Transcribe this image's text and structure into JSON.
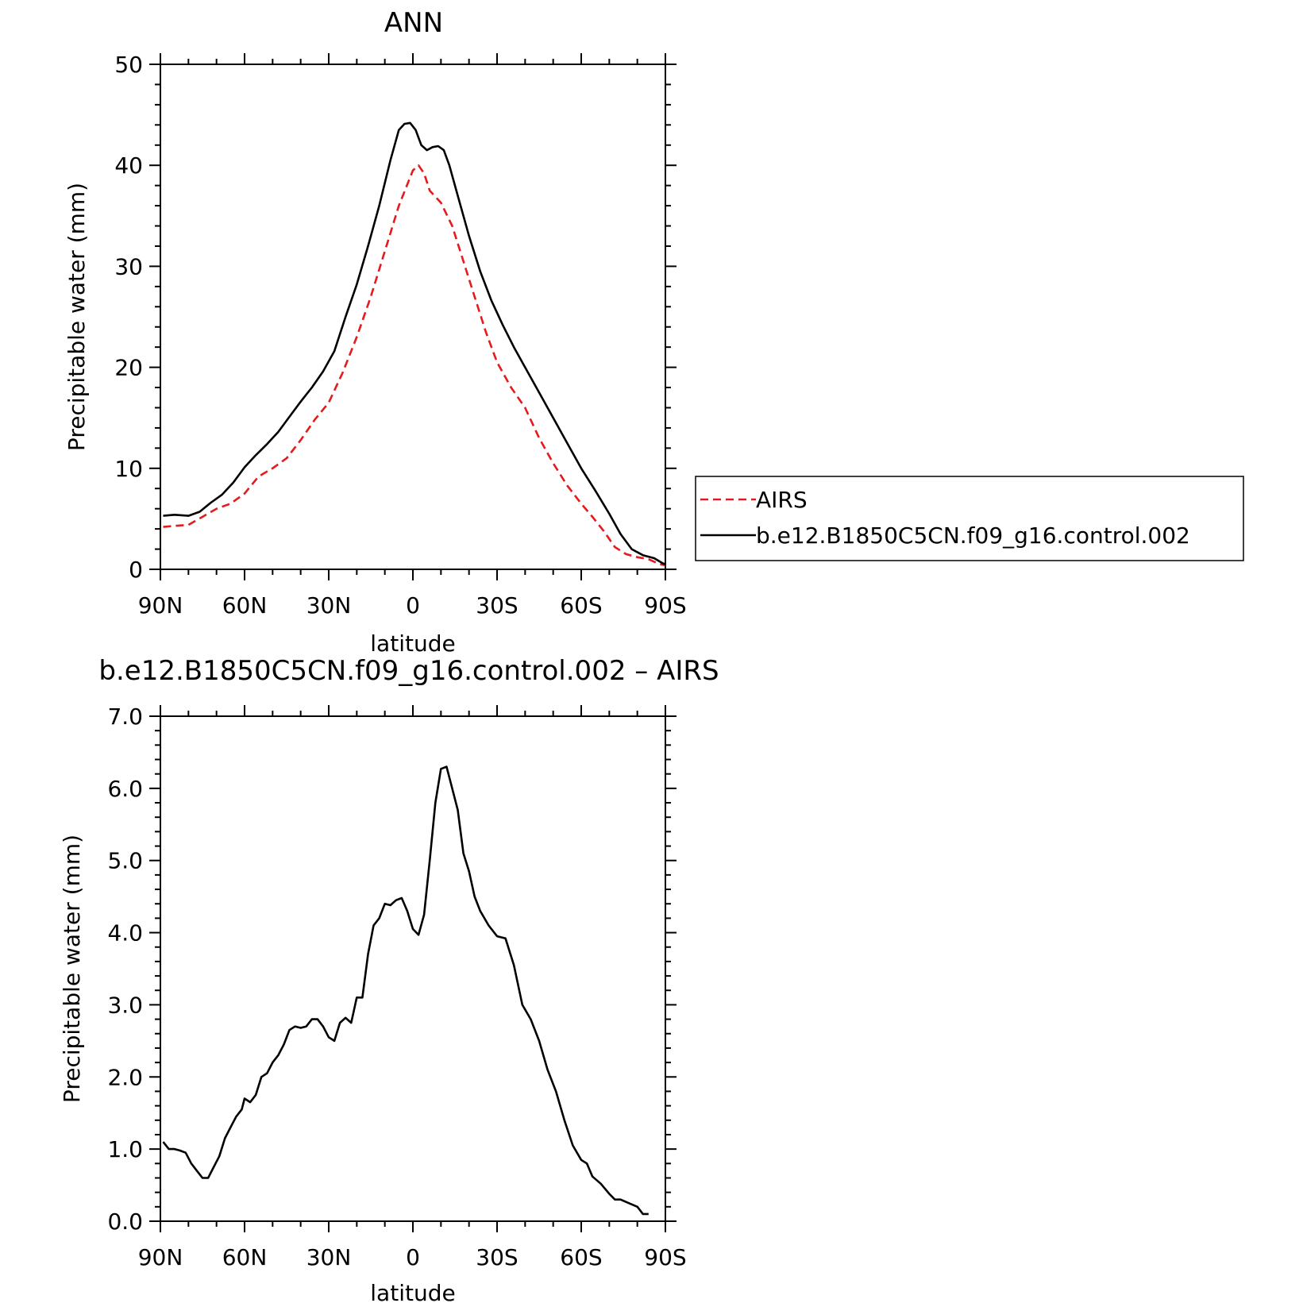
{
  "chart_data": [
    {
      "type": "line",
      "title": "ANN",
      "xlabel": "latitude",
      "ylabel": "Precipitable water (mm)",
      "xlim": [
        90,
        -90
      ],
      "ylim": [
        0,
        50
      ],
      "x_ticks": [
        90,
        60,
        30,
        0,
        -30,
        -60,
        -90
      ],
      "x_tick_labels": [
        "90N",
        "60N",
        "30N",
        "0",
        "30S",
        "60S",
        "90S"
      ],
      "y_ticks": [
        0,
        10,
        20,
        30,
        40,
        50
      ],
      "y_tick_labels": [
        "0",
        "10",
        "20",
        "30",
        "40",
        "50"
      ],
      "legend_position": "right",
      "series": [
        {
          "name": "AIRS",
          "color": "#e41a1c",
          "dash": "dashed",
          "points": [
            [
              89,
              4.2
            ],
            [
              85,
              4.3
            ],
            [
              80,
              4.4
            ],
            [
              75,
              5.2
            ],
            [
              70,
              6.0
            ],
            [
              65,
              6.5
            ],
            [
              60,
              7.5
            ],
            [
              55,
              9.2
            ],
            [
              50,
              10.0
            ],
            [
              45,
              11.0
            ],
            [
              40,
              12.8
            ],
            [
              35,
              14.8
            ],
            [
              30,
              16.5
            ],
            [
              25,
              19.5
            ],
            [
              20,
              23.0
            ],
            [
              15,
              27.0
            ],
            [
              10,
              31.5
            ],
            [
              5,
              36.0
            ],
            [
              0,
              39.5
            ],
            [
              -2,
              40.0
            ],
            [
              -4,
              39.2
            ],
            [
              -6,
              37.5
            ],
            [
              -10,
              36.3
            ],
            [
              -14,
              34.0
            ],
            [
              -18,
              30.5
            ],
            [
              -22,
              27.0
            ],
            [
              -26,
              23.5
            ],
            [
              -30,
              20.5
            ],
            [
              -35,
              18.0
            ],
            [
              -40,
              16.0
            ],
            [
              -45,
              13.0
            ],
            [
              -50,
              10.5
            ],
            [
              -55,
              8.3
            ],
            [
              -60,
              6.5
            ],
            [
              -64,
              5.2
            ],
            [
              -68,
              3.8
            ],
            [
              -72,
              2.2
            ],
            [
              -76,
              1.5
            ],
            [
              -80,
              1.2
            ],
            [
              -84,
              1.0
            ],
            [
              -88,
              0.5
            ],
            [
              -90,
              0.4
            ]
          ]
        },
        {
          "name": "b.e12.B1850C5CN.f09_g16.control.002",
          "color": "#000000",
          "dash": "solid",
          "points": [
            [
              89,
              5.3
            ],
            [
              85,
              5.4
            ],
            [
              80,
              5.3
            ],
            [
              76,
              5.7
            ],
            [
              72,
              6.6
            ],
            [
              68,
              7.4
            ],
            [
              64,
              8.6
            ],
            [
              60,
              10.1
            ],
            [
              56,
              11.3
            ],
            [
              52,
              12.4
            ],
            [
              48,
              13.6
            ],
            [
              44,
              15.1
            ],
            [
              40,
              16.6
            ],
            [
              36,
              18.0
            ],
            [
              32,
              19.6
            ],
            [
              28,
              21.6
            ],
            [
              24,
              25.0
            ],
            [
              20,
              28.2
            ],
            [
              16,
              32.0
            ],
            [
              12,
              36.0
            ],
            [
              8,
              40.5
            ],
            [
              5,
              43.5
            ],
            [
              3,
              44.1
            ],
            [
              1,
              44.2
            ],
            [
              -1,
              43.5
            ],
            [
              -3,
              42.0
            ],
            [
              -5,
              41.5
            ],
            [
              -7,
              41.8
            ],
            [
              -9,
              41.9
            ],
            [
              -11,
              41.5
            ],
            [
              -13,
              40.0
            ],
            [
              -16,
              37.0
            ],
            [
              -20,
              33.0
            ],
            [
              -24,
              29.5
            ],
            [
              -28,
              26.6
            ],
            [
              -32,
              24.2
            ],
            [
              -36,
              22.0
            ],
            [
              -40,
              20.0
            ],
            [
              -45,
              17.5
            ],
            [
              -50,
              15.0
            ],
            [
              -55,
              12.5
            ],
            [
              -60,
              10.0
            ],
            [
              -65,
              7.8
            ],
            [
              -70,
              5.5
            ],
            [
              -74,
              3.5
            ],
            [
              -78,
              2.0
            ],
            [
              -82,
              1.4
            ],
            [
              -86,
              1.1
            ],
            [
              -89,
              0.6
            ],
            [
              -90,
              0.5
            ]
          ]
        }
      ]
    },
    {
      "type": "line",
      "title": "b.e12.B1850C5CN.f09_g16.control.002 – AIRS",
      "xlabel": "latitude",
      "ylabel": "Precipitable water (mm)",
      "xlim": [
        90,
        -90
      ],
      "ylim": [
        0,
        7
      ],
      "x_ticks": [
        90,
        60,
        30,
        0,
        -30,
        -60,
        -90
      ],
      "x_tick_labels": [
        "90N",
        "60N",
        "30N",
        "0",
        "30S",
        "60S",
        "90S"
      ],
      "y_ticks": [
        0,
        1,
        2,
        3,
        4,
        5,
        6,
        7
      ],
      "y_tick_labels": [
        "0.0",
        "1.0",
        "2.0",
        "3.0",
        "4.0",
        "5.0",
        "6.0",
        "7.0"
      ],
      "series": [
        {
          "name": "",
          "color": "#000000",
          "dash": "solid",
          "points": [
            [
              89,
              1.1
            ],
            [
              87,
              1.0
            ],
            [
              85,
              1.0
            ],
            [
              83,
              0.98
            ],
            [
              81,
              0.95
            ],
            [
              79,
              0.8
            ],
            [
              77,
              0.7
            ],
            [
              75,
              0.6
            ],
            [
              73,
              0.6
            ],
            [
              71,
              0.75
            ],
            [
              69,
              0.9
            ],
            [
              67,
              1.15
            ],
            [
              65,
              1.3
            ],
            [
              63,
              1.45
            ],
            [
              61,
              1.55
            ],
            [
              60,
              1.7
            ],
            [
              58,
              1.65
            ],
            [
              56,
              1.75
            ],
            [
              54,
              2.0
            ],
            [
              52,
              2.05
            ],
            [
              50,
              2.2
            ],
            [
              48,
              2.3
            ],
            [
              46,
              2.45
            ],
            [
              44,
              2.65
            ],
            [
              42,
              2.7
            ],
            [
              40,
              2.68
            ],
            [
              38,
              2.7
            ],
            [
              36,
              2.8
            ],
            [
              34,
              2.8
            ],
            [
              32,
              2.7
            ],
            [
              30,
              2.55
            ],
            [
              28,
              2.5
            ],
            [
              26,
              2.75
            ],
            [
              24,
              2.82
            ],
            [
              22,
              2.75
            ],
            [
              20,
              3.1
            ],
            [
              18,
              3.1
            ],
            [
              16,
              3.7
            ],
            [
              14,
              4.1
            ],
            [
              12,
              4.2
            ],
            [
              10,
              4.4
            ],
            [
              8,
              4.38
            ],
            [
              6,
              4.45
            ],
            [
              4,
              4.48
            ],
            [
              2,
              4.3
            ],
            [
              0,
              4.05
            ],
            [
              -2,
              3.97
            ],
            [
              -4,
              4.25
            ],
            [
              -6,
              5.0
            ],
            [
              -8,
              5.8
            ],
            [
              -10,
              6.27
            ],
            [
              -12,
              6.3
            ],
            [
              -14,
              6.0
            ],
            [
              -16,
              5.7
            ],
            [
              -18,
              5.1
            ],
            [
              -20,
              4.85
            ],
            [
              -22,
              4.5
            ],
            [
              -24,
              4.3
            ],
            [
              -27,
              4.1
            ],
            [
              -30,
              3.95
            ],
            [
              -33,
              3.92
            ],
            [
              -36,
              3.55
            ],
            [
              -39,
              3.0
            ],
            [
              -42,
              2.8
            ],
            [
              -45,
              2.5
            ],
            [
              -48,
              2.1
            ],
            [
              -51,
              1.8
            ],
            [
              -54,
              1.4
            ],
            [
              -57,
              1.05
            ],
            [
              -60,
              0.85
            ],
            [
              -62,
              0.8
            ],
            [
              -64,
              0.62
            ],
            [
              -67,
              0.52
            ],
            [
              -70,
              0.38
            ],
            [
              -72,
              0.3
            ],
            [
              -74,
              0.3
            ],
            [
              -77,
              0.25
            ],
            [
              -80,
              0.2
            ],
            [
              -82,
              0.1
            ],
            [
              -84,
              0.1
            ]
          ]
        }
      ]
    }
  ]
}
